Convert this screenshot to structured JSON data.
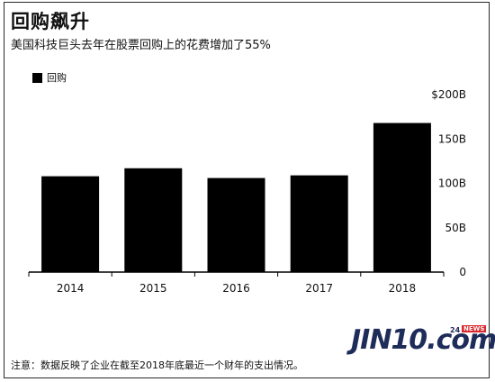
{
  "header": {
    "title": "回购飙升",
    "subtitle": "美国科技巨头去年在股票回购上的花费增加了55%"
  },
  "footnote": "注意：数据反映了企业在截至2018年底最近一个财年的支出情况。",
  "logo": {
    "text": "JIN10.com",
    "sub": "24",
    "badge": "NEWS"
  },
  "colors": {
    "bar": "#000000",
    "axis": "#000000",
    "grid": "#000000"
  },
  "chart_data": {
    "type": "bar",
    "categories": [
      "2014",
      "2015",
      "2016",
      "2017",
      "2018"
    ],
    "series": [
      {
        "name": "回购",
        "values": [
          108,
          117,
          106,
          109,
          168
        ]
      }
    ],
    "ylim": [
      0,
      200
    ],
    "yticks": [
      0,
      50,
      100,
      150,
      200
    ],
    "ytick_labels": [
      "0",
      "50B",
      "100B",
      "150B",
      "$200B"
    ],
    "grid": false,
    "legend_position": "top-left"
  }
}
